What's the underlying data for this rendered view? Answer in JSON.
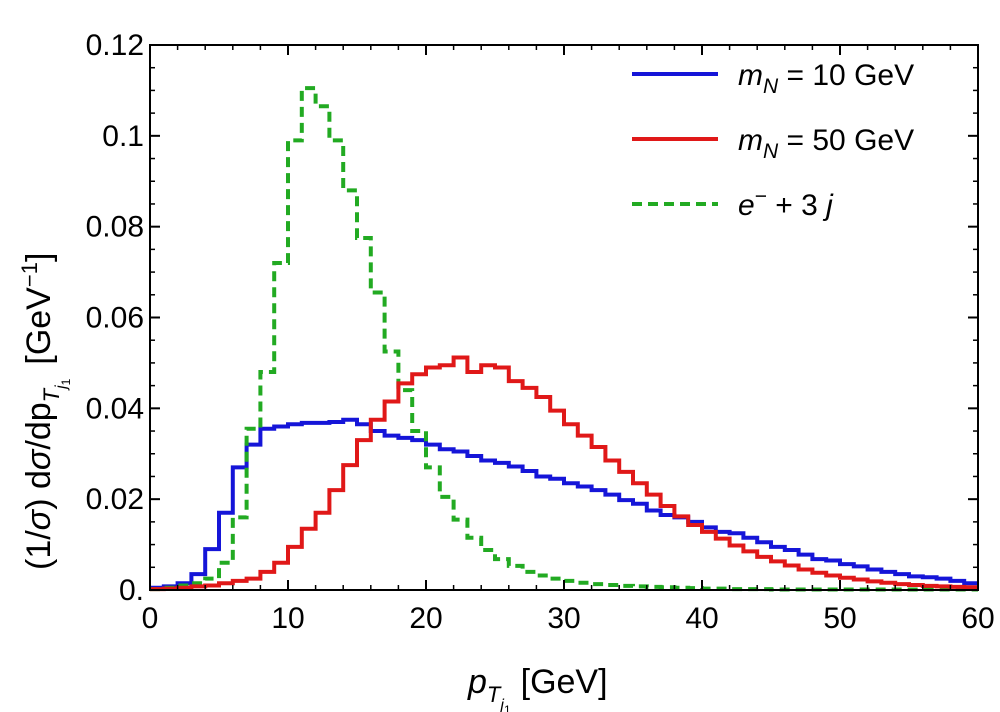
{
  "chart_data": {
    "type": "line",
    "step": true,
    "title": "",
    "xlabel": {
      "symbol": "p",
      "sub1": "T",
      "sub2": "j",
      "sub3": "1",
      "units": "[GeV]"
    },
    "ylabel": {
      "prefix": "(1/",
      "sigma": "σ",
      "middle": ") d",
      "middle2": "/dp",
      "sub1": "T",
      "sub2": "j",
      "sub3": "1",
      "units_open": "[GeV",
      "units_exp": "−1",
      "units_close": "]"
    },
    "xlim": [
      0,
      60
    ],
    "ylim": [
      0,
      0.12
    ],
    "xticks": [
      0,
      10,
      20,
      30,
      40,
      50,
      60
    ],
    "yticks": [
      0,
      0.02,
      0.04,
      0.06,
      0.08,
      0.1,
      0.12
    ],
    "yticklabels": [
      "0.",
      "0.02",
      "0.04",
      "0.06",
      "0.08",
      "0.1",
      "0.12"
    ],
    "bin_width": 1,
    "legend_position": "top-right",
    "series": [
      {
        "name": "mN10",
        "label": {
          "var": "m",
          "sub": "N",
          "rest": " = 10 GeV"
        },
        "color": "#1515d8",
        "dash": false,
        "values": [
          0.0005,
          0.0008,
          0.0015,
          0.0035,
          0.009,
          0.017,
          0.027,
          0.032,
          0.0355,
          0.036,
          0.0365,
          0.0368,
          0.0368,
          0.037,
          0.0375,
          0.0365,
          0.035,
          0.034,
          0.0335,
          0.033,
          0.032,
          0.031,
          0.0305,
          0.0295,
          0.0285,
          0.028,
          0.0272,
          0.0262,
          0.025,
          0.0245,
          0.0235,
          0.0228,
          0.022,
          0.021,
          0.0198,
          0.019,
          0.0175,
          0.0165,
          0.016,
          0.015,
          0.0138,
          0.0128,
          0.0125,
          0.0115,
          0.0105,
          0.0095,
          0.0088,
          0.0078,
          0.0068,
          0.0065,
          0.0057,
          0.0052,
          0.0045,
          0.004,
          0.0035,
          0.003,
          0.0028,
          0.0025,
          0.002,
          0.0015
        ]
      },
      {
        "name": "mN50",
        "label": {
          "var": "m",
          "sub": "N",
          "rest": " = 50 GeV"
        },
        "color": "#e01818",
        "dash": false,
        "values": [
          0.0002,
          0.0003,
          0.0005,
          0.0008,
          0.001,
          0.0015,
          0.002,
          0.0025,
          0.004,
          0.006,
          0.0095,
          0.0135,
          0.017,
          0.022,
          0.0275,
          0.033,
          0.0375,
          0.0415,
          0.0455,
          0.0475,
          0.049,
          0.0495,
          0.0512,
          0.048,
          0.0495,
          0.049,
          0.046,
          0.0445,
          0.0425,
          0.0395,
          0.0365,
          0.034,
          0.0315,
          0.0285,
          0.026,
          0.0235,
          0.021,
          0.0185,
          0.0162,
          0.0143,
          0.0128,
          0.0113,
          0.0098,
          0.0085,
          0.0073,
          0.0063,
          0.0054,
          0.0045,
          0.0038,
          0.0032,
          0.0027,
          0.0023,
          0.0019,
          0.0016,
          0.0013,
          0.0011,
          0.0009,
          0.0008,
          0.0007,
          0.0006
        ]
      },
      {
        "name": "bkg",
        "label": {
          "var": "e",
          "sup": "−",
          "rest": " + 3 ",
          "var2": "j"
        },
        "color": "#22aa22",
        "dash": true,
        "values": [
          0.0002,
          0.0005,
          0.001,
          0.0015,
          0.0025,
          0.006,
          0.016,
          0.0355,
          0.048,
          0.072,
          0.099,
          0.1105,
          0.1065,
          0.099,
          0.088,
          0.0775,
          0.0655,
          0.0525,
          0.044,
          0.035,
          0.027,
          0.0205,
          0.0155,
          0.0115,
          0.0088,
          0.0068,
          0.0053,
          0.004,
          0.0032,
          0.0025,
          0.002,
          0.0016,
          0.0013,
          0.0011,
          0.0009,
          0.0008,
          0.0007,
          0.0006,
          0.0005,
          0.0004,
          0.0003,
          0.0003,
          0.0002,
          0.0002,
          0.0002,
          0.0001,
          0.0001,
          0.0001,
          0.0001,
          0.0001,
          0.0001,
          0.0001,
          0.0001,
          0.0001,
          0.0001,
          0.0001,
          0.0001,
          0.0001,
          0.0001,
          0.0001
        ]
      }
    ]
  }
}
